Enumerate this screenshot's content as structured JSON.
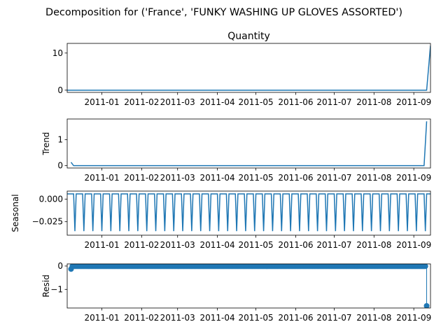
{
  "figure": {
    "suptitle": "Decomposition for ('France', 'FUNKY WASHING UP GLOVES ASSORTED')",
    "line_color": "#1f77b4"
  },
  "chart_data": [
    {
      "type": "line",
      "title": "Quantity",
      "ylabel": "",
      "xlim": [
        "2010-12-05",
        "2011-09-14"
      ],
      "ylim": [
        -0.6,
        12.6
      ],
      "yticks": [
        0,
        10
      ],
      "ytick_labels": [
        "0",
        "10"
      ],
      "xtick_labels": [
        "2011-01",
        "2011-02",
        "2011-03",
        "2011-04",
        "2011-05",
        "2011-06",
        "2011-07",
        "2011-08",
        "2011-09"
      ],
      "series": [
        {
          "x": [
            "2010-12-05",
            "2011-09-11",
            "2011-09-14"
          ],
          "values": [
            0,
            0,
            12
          ]
        }
      ]
    },
    {
      "type": "line",
      "title": "",
      "ylabel": "Trend",
      "xlim": [
        "2010-12-05",
        "2011-09-14"
      ],
      "ylim": [
        -0.09,
        1.8
      ],
      "yticks": [
        0,
        1
      ],
      "ytick_labels": [
        "0",
        "1"
      ],
      "xtick_labels": [
        "2011-01",
        "2011-02",
        "2011-03",
        "2011-04",
        "2011-05",
        "2011-06",
        "2011-07",
        "2011-08",
        "2011-09"
      ],
      "series": [
        {
          "x": [
            "2010-12-08",
            "2010-12-10",
            "2011-09-09",
            "2011-09-11"
          ],
          "values": [
            0.13,
            0,
            0,
            1.71
          ]
        }
      ]
    },
    {
      "type": "line",
      "title": "",
      "ylabel": "Seasonal",
      "xlim": [
        "2010-12-05",
        "2011-09-14"
      ],
      "ylim": [
        -0.04,
        0.009
      ],
      "yticks": [
        0.0,
        -0.025
      ],
      "ytick_labels": [
        "0.000",
        "−0.025"
      ],
      "xtick_labels": [
        "2011-01",
        "2011-02",
        "2011-03",
        "2011-04",
        "2011-05",
        "2011-06",
        "2011-07",
        "2011-08",
        "2011-09"
      ],
      "seasonal_pattern": {
        "period_days": 7,
        "values": [
          0.0059,
          0.0059,
          0.0059,
          0.0059,
          0.0059,
          0.0059,
          -0.0355
        ]
      },
      "series": [
        {
          "x_start": "2010-12-05",
          "x_end": "2011-09-14"
        }
      ]
    },
    {
      "type": "scatter",
      "title": "",
      "ylabel": "Resid",
      "xlim": [
        "2010-12-05",
        "2011-09-14"
      ],
      "ylim": [
        -1.8,
        0.09
      ],
      "yticks": [
        0,
        -1
      ],
      "ytick_labels": [
        "0",
        "−1"
      ],
      "xtick_labels": [
        "2011-01",
        "2011-02",
        "2011-03",
        "2011-04",
        "2011-05",
        "2011-06",
        "2011-07",
        "2011-08",
        "2011-09"
      ],
      "baseline": 0,
      "series": [
        {
          "x_start": "2010-12-08",
          "x_end": "2011-09-11",
          "typical_value": -0.01,
          "outliers": [
            {
              "x": "2010-12-08",
              "value": -0.13
            },
            {
              "x": "2011-09-11",
              "value": -1.71
            }
          ]
        }
      ]
    }
  ]
}
